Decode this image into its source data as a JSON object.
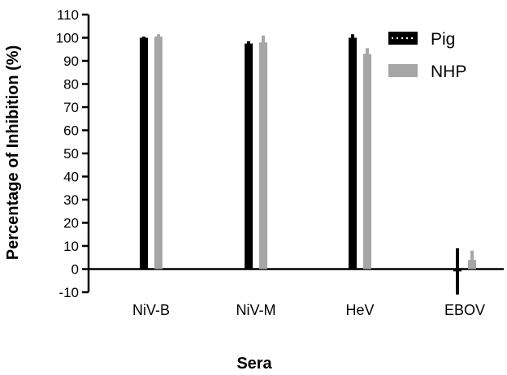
{
  "chart_data": {
    "type": "bar",
    "xlabel": "Sera",
    "ylabel": "Percentage of Inhibition (%)",
    "categories": [
      "NiV-B",
      "NiV-M",
      "HeV",
      "EBOV"
    ],
    "ylim": [
      -10,
      110
    ],
    "yticks": [
      -10,
      0,
      10,
      20,
      30,
      40,
      50,
      60,
      70,
      80,
      90,
      100,
      110
    ],
    "series": [
      {
        "name": "Pig",
        "color": "#000000",
        "values": [
          100,
          97.5,
          100,
          -1
        ],
        "error": [
          0.5,
          1,
          1.5,
          10
        ]
      },
      {
        "name": "NHP",
        "color": "#a6a6a6",
        "values": [
          100.5,
          98,
          93,
          4
        ],
        "error": [
          1,
          3,
          2.5,
          4
        ]
      }
    ],
    "legend": "top-right",
    "grid": false
  }
}
